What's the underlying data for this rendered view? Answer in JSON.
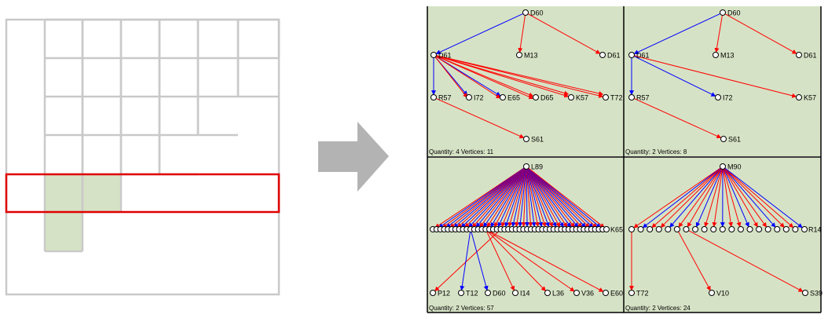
{
  "left_grid": {
    "highlight_fill": "#d6e2c5",
    "grid_color": "#c9c9c9",
    "selection_color": "#e00000"
  },
  "arrow": {
    "color": "#b3b3b3"
  },
  "panels": [
    {
      "footer": "Quantity: 4 Vertices: 11",
      "nodes": [
        {
          "id": "D60",
          "label": "D60"
        },
        {
          "id": "M13",
          "label": "M13"
        },
        {
          "id": "D61b",
          "label": "D61"
        },
        {
          "id": "D61",
          "label": "D61"
        },
        {
          "id": "R57",
          "label": "R57"
        },
        {
          "id": "I72",
          "label": "I72"
        },
        {
          "id": "E65",
          "label": "E65"
        },
        {
          "id": "D65",
          "label": "D65"
        },
        {
          "id": "K57",
          "label": "K57"
        },
        {
          "id": "T72",
          "label": "T72"
        },
        {
          "id": "S61",
          "label": "S61"
        }
      ],
      "edges": [
        {
          "from": "D60",
          "to": "D61",
          "color": "blue"
        },
        {
          "from": "D60",
          "to": "M13",
          "color": "red"
        },
        {
          "from": "D60",
          "to": "D61b",
          "color": "red"
        },
        {
          "from": "D61",
          "to": "R57",
          "color": "blue"
        },
        {
          "from": "D61",
          "to": "I72",
          "color": "blue"
        },
        {
          "from": "D61",
          "to": "E65",
          "color": "blue"
        },
        {
          "from": "D61",
          "to": "D65",
          "color": "red"
        },
        {
          "from": "D61",
          "to": "K57",
          "color": "red"
        },
        {
          "from": "D61",
          "to": "T72",
          "color": "red"
        },
        {
          "from": "R57",
          "to": "S61",
          "color": "red"
        },
        {
          "from": "D61",
          "to": "I72",
          "color": "red",
          "offset": 3
        },
        {
          "from": "D61",
          "to": "E65",
          "color": "red",
          "offset": 3
        },
        {
          "from": "D61",
          "to": "D65",
          "color": "red",
          "offset": 3
        },
        {
          "from": "D61",
          "to": "K57",
          "color": "red",
          "offset": -3
        },
        {
          "from": "D61",
          "to": "T72",
          "color": "red",
          "offset": -3
        }
      ]
    },
    {
      "footer": "Quantity: 2 Vertices: 8",
      "nodes": [
        {
          "id": "D60",
          "label": "D60"
        },
        {
          "id": "M13",
          "label": "M13"
        },
        {
          "id": "D61b",
          "label": "D61"
        },
        {
          "id": "D61",
          "label": "D61"
        },
        {
          "id": "R57",
          "label": "R57"
        },
        {
          "id": "I72",
          "label": "I72"
        },
        {
          "id": "K57",
          "label": "K57"
        },
        {
          "id": "S61",
          "label": "S61"
        }
      ],
      "edges": [
        {
          "from": "D60",
          "to": "D61",
          "color": "blue"
        },
        {
          "from": "D60",
          "to": "M13",
          "color": "red"
        },
        {
          "from": "D60",
          "to": "D61b",
          "color": "red"
        },
        {
          "from": "D61",
          "to": "R57",
          "color": "blue"
        },
        {
          "from": "D61",
          "to": "I72",
          "color": "blue"
        },
        {
          "from": "D61",
          "to": "K57",
          "color": "red"
        },
        {
          "from": "R57",
          "to": "S61",
          "color": "red"
        }
      ]
    },
    {
      "footer": "Quantity: 2 Vertices: 57",
      "nodes": [
        {
          "id": "L89",
          "label": "L89"
        },
        {
          "id": "P12",
          "label": "P12"
        },
        {
          "id": "T12",
          "label": "T12"
        },
        {
          "id": "D60",
          "label": "D60"
        },
        {
          "id": "I14",
          "label": "I14"
        },
        {
          "id": "L36",
          "label": "L36"
        },
        {
          "id": "V36",
          "label": "V36"
        },
        {
          "id": "E60",
          "label": "E60"
        },
        {
          "id": "ROWEND",
          "label": "K65"
        }
      ],
      "row_count": 47,
      "root_edge_colors": [
        "red",
        "blue"
      ],
      "bottom_edges": [
        {
          "to": "P12",
          "color": "red"
        },
        {
          "to": "T12",
          "color": "blue"
        },
        {
          "to": "D60",
          "color": "blue"
        },
        {
          "to": "I14",
          "color": "red"
        },
        {
          "to": "L36",
          "color": "red"
        },
        {
          "to": "V36",
          "color": "red"
        },
        {
          "to": "E60",
          "color": "red"
        }
      ]
    },
    {
      "footer": "Quantity: 2 Vertices: 24",
      "nodes": [
        {
          "id": "M90",
          "label": "M90"
        },
        {
          "id": "T72",
          "label": "T72"
        },
        {
          "id": "V10",
          "label": "V10"
        },
        {
          "id": "S39",
          "label": "S39"
        },
        {
          "id": "ROWEND",
          "label": "R14"
        }
      ],
      "row_count": 20,
      "root_edge_colors": [
        "red",
        "blue",
        "red"
      ],
      "bottom_edges": [
        {
          "to": "T72",
          "color": "red"
        },
        {
          "to": "V10",
          "color": "red"
        },
        {
          "to": "S39",
          "color": "red"
        }
      ]
    }
  ]
}
